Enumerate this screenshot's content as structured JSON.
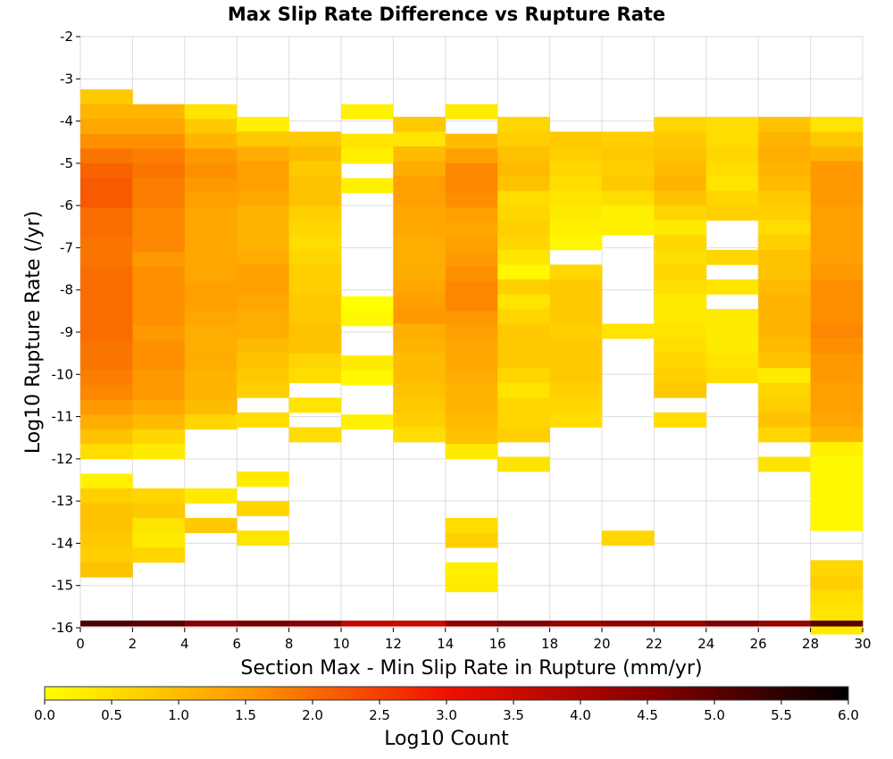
{
  "chart_data": {
    "type": "heatmap",
    "title": "Max Slip Rate Difference vs Rupture Rate",
    "xlabel": "Section Max - Min Slip Rate in Rupture (mm/yr)",
    "ylabel": "Log10 Rupture Rate (/yr)",
    "xlim": [
      0,
      30
    ],
    "ylim": [
      -16,
      -2
    ],
    "x_ticks": [
      "0",
      "2",
      "4",
      "6",
      "8",
      "10",
      "12",
      "14",
      "16",
      "18",
      "20",
      "22",
      "24",
      "26",
      "28",
      "30"
    ],
    "y_ticks": [
      "-2",
      "-3",
      "-4",
      "-5",
      "-6",
      "-7",
      "-8",
      "-9",
      "-10",
      "-11",
      "-12",
      "-13",
      "-14",
      "-15",
      "-16"
    ],
    "x_bin_width": 2,
    "y_bin_height": 0.35,
    "colorbar": {
      "label": "Log10 Count",
      "range": [
        0,
        6
      ],
      "ticks": [
        "0.0",
        "0.5",
        "1.0",
        "1.5",
        "2.0",
        "2.5",
        "3.0",
        "3.5",
        "4.0",
        "4.5",
        "5.0",
        "5.5",
        "6.0"
      ],
      "stops": [
        {
          "v": 0.0,
          "color": "#ffff00"
        },
        {
          "v": 1.5,
          "color": "#ff9900"
        },
        {
          "v": 3.0,
          "color": "#ee1100"
        },
        {
          "v": 4.5,
          "color": "#880000"
        },
        {
          "v": 6.0,
          "color": "#000000"
        }
      ]
    },
    "grid": true,
    "bottom_row": {
      "y": -15.9,
      "values": [
        5.2,
        5.0,
        4.5,
        4.7,
        4.5,
        3.7,
        3.6,
        4.4,
        4.6,
        4.3,
        4.4,
        4.3,
        4.6,
        4.3,
        5.0
      ]
    },
    "columns": [
      {
        "x": 1,
        "y_top": -3.25,
        "values": [
          0.8,
          1.1,
          1.3,
          1.6,
          1.9,
          2.1,
          2.2,
          2.2,
          2.0,
          2.0,
          1.9,
          1.9,
          2.0,
          2.0,
          2.0,
          2.0,
          2.0,
          1.9,
          1.9,
          1.8,
          1.7,
          1.5,
          1.2,
          0.9,
          0.5,
          null,
          0.2,
          0.7,
          0.9,
          0.9,
          0.8,
          0.7,
          0.9
        ]
      },
      {
        "x": 3,
        "y_top": -3.6,
        "values": [
          1.1,
          1.3,
          1.6,
          1.8,
          1.9,
          1.8,
          1.8,
          1.7,
          1.7,
          1.7,
          1.5,
          1.6,
          1.6,
          1.6,
          1.6,
          1.5,
          1.6,
          1.6,
          1.5,
          1.5,
          1.3,
          1.0,
          0.6,
          0.3,
          null,
          null,
          0.6,
          0.8,
          0.4,
          0.3,
          0.6
        ]
      },
      {
        "x": 5,
        "y_top": -3.6,
        "values": [
          0.4,
          0.8,
          1.1,
          1.5,
          1.6,
          1.5,
          1.4,
          1.3,
          1.3,
          1.3,
          1.3,
          1.3,
          1.4,
          1.4,
          1.3,
          1.2,
          1.2,
          1.2,
          1.1,
          1.1,
          1.0,
          0.6,
          null,
          null,
          null,
          null,
          0.3,
          null,
          0.8
        ]
      },
      {
        "x": 7,
        "y_top": -3.9,
        "values": [
          0.2,
          0.8,
          1.2,
          1.4,
          1.4,
          1.3,
          1.1,
          1.1,
          1.1,
          1.2,
          1.4,
          1.4,
          1.3,
          1.2,
          1.2,
          1.0,
          0.9,
          0.8,
          0.7,
          null,
          0.5,
          null,
          null,
          null,
          0.3,
          null,
          0.6,
          null,
          0.4
        ]
      },
      {
        "x": 9,
        "y_top": -4.25,
        "values": [
          0.8,
          1.0,
          0.8,
          0.9,
          0.9,
          0.7,
          0.6,
          0.5,
          0.6,
          0.7,
          0.7,
          0.8,
          0.8,
          0.9,
          0.9,
          0.6,
          0.5,
          null,
          0.4,
          null,
          0.5
        ]
      },
      {
        "x": 11,
        "y_top": -3.6,
        "values": [
          0.2,
          null,
          0.4,
          0.2,
          null,
          0.2,
          null,
          null,
          null,
          null,
          null,
          null,
          null,
          0.0,
          0.1,
          null,
          null,
          0.3,
          0.1,
          null,
          null,
          0.2
        ]
      },
      {
        "x": 13,
        "y_top": -3.9,
        "values": [
          0.8,
          0.4,
          1.0,
          1.2,
          1.4,
          1.4,
          1.3,
          1.3,
          1.2,
          1.2,
          1.2,
          1.3,
          1.4,
          1.5,
          1.2,
          1.1,
          1.0,
          1.0,
          0.9,
          0.8,
          0.7,
          0.5
        ]
      },
      {
        "x": 15,
        "y_top": -3.6,
        "values": [
          0.3,
          null,
          1.0,
          1.4,
          1.7,
          1.7,
          1.6,
          1.4,
          1.3,
          1.4,
          1.5,
          1.6,
          1.7,
          1.7,
          1.5,
          1.4,
          1.3,
          1.3,
          1.2,
          1.1,
          1.1,
          1.0,
          0.9,
          0.3,
          null,
          null,
          null,
          null,
          0.5,
          0.7,
          null,
          0.2,
          0.3
        ]
      },
      {
        "x": 17,
        "y_top": -3.9,
        "values": [
          0.6,
          0.7,
          0.9,
          1.0,
          0.9,
          0.5,
          0.6,
          0.7,
          0.6,
          0.4,
          0.1,
          0.7,
          0.4,
          0.6,
          0.8,
          0.8,
          0.8,
          0.6,
          0.4,
          0.6,
          0.6,
          0.7,
          null,
          0.4
        ]
      },
      {
        "x": 19,
        "y_top": -4.25,
        "values": [
          0.8,
          0.7,
          0.6,
          0.5,
          0.4,
          0.3,
          0.2,
          0.1,
          null,
          0.6,
          0.8,
          0.8,
          0.8,
          0.7,
          0.8,
          0.8,
          0.8,
          0.7,
          0.6,
          0.5
        ]
      },
      {
        "x": 21,
        "y_top": -4.25,
        "values": [
          0.7,
          0.8,
          0.7,
          0.8,
          0.5,
          0.2,
          0.2,
          null,
          null,
          null,
          null,
          null,
          null,
          0.4,
          null,
          null,
          null,
          null,
          null,
          null,
          null,
          null,
          null,
          null,
          null,
          null,
          null,
          0.6
        ]
      },
      {
        "x": 23,
        "y_top": -3.9,
        "values": [
          0.6,
          0.8,
          0.9,
          1.0,
          1.1,
          0.9,
          0.6,
          0.3,
          0.6,
          0.5,
          0.6,
          0.5,
          0.3,
          0.3,
          0.4,
          0.5,
          0.6,
          0.7,
          0.8,
          null,
          0.5
        ]
      },
      {
        "x": 25,
        "y_top": -3.9,
        "values": [
          0.5,
          0.5,
          0.6,
          0.5,
          0.4,
          0.6,
          0.7,
          null,
          null,
          0.6,
          null,
          0.4,
          null,
          0.3,
          0.3,
          0.3,
          0.4,
          0.5
        ]
      },
      {
        "x": 27,
        "y_top": -3.9,
        "values": [
          0.9,
          1.1,
          1.2,
          1.1,
          1.0,
          0.8,
          0.7,
          0.5,
          0.7,
          0.9,
          0.9,
          1.0,
          1.1,
          1.1,
          1.1,
          1.0,
          0.9,
          0.3,
          0.6,
          0.7,
          0.9,
          0.6,
          null,
          0.4
        ]
      },
      {
        "x": 29,
        "y_top": -3.9,
        "values": [
          0.4,
          0.8,
          1.1,
          1.5,
          1.5,
          1.5,
          1.4,
          1.4,
          1.4,
          1.4,
          1.5,
          1.6,
          1.6,
          1.6,
          1.7,
          1.6,
          1.5,
          1.5,
          1.4,
          1.4,
          1.3,
          1.1,
          0.2,
          0.1,
          0.1,
          0.1,
          0.1,
          0.1,
          null,
          null,
          0.6,
          0.7,
          0.5,
          0.4,
          0.3
        ]
      }
    ]
  }
}
